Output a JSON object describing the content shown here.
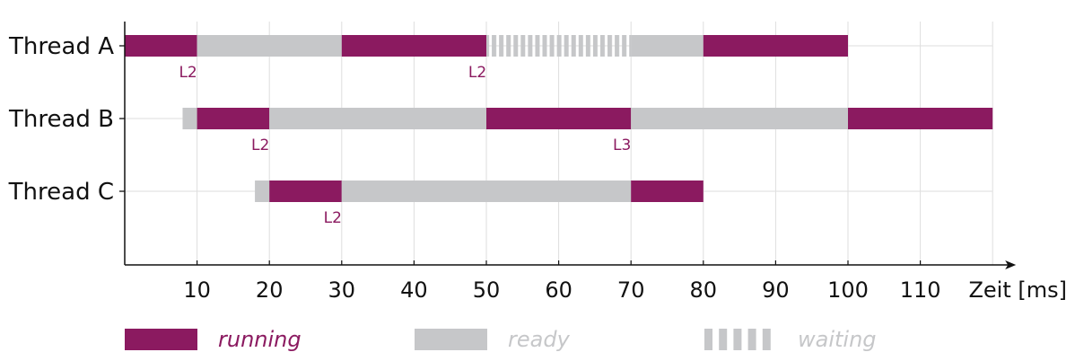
{
  "chart_data": {
    "type": "gantt",
    "xlabel": "Zeit [ms]",
    "xlim": [
      0,
      120
    ],
    "x_ticks": [
      10,
      20,
      30,
      40,
      50,
      60,
      70,
      80,
      90,
      100,
      110
    ],
    "grid": true,
    "colors": {
      "running": "#8b1a60",
      "ready": "#c6c7c9",
      "waiting": "#c6c7c9"
    },
    "legend": [
      {
        "state": "running",
        "label": "running"
      },
      {
        "state": "ready",
        "label": "ready"
      },
      {
        "state": "waiting",
        "label": "waiting"
      }
    ],
    "threads": [
      {
        "name": "Thread A",
        "segments": [
          {
            "start": 0,
            "end": 10,
            "state": "running"
          },
          {
            "start": 10,
            "end": 30,
            "state": "ready"
          },
          {
            "start": 30,
            "end": 50,
            "state": "running"
          },
          {
            "start": 50,
            "end": 70,
            "state": "waiting"
          },
          {
            "start": 70,
            "end": 80,
            "state": "ready"
          },
          {
            "start": 80,
            "end": 100,
            "state": "running"
          }
        ],
        "markers": [
          {
            "x": 10,
            "label": "L2"
          },
          {
            "x": 50,
            "label": "L2"
          }
        ]
      },
      {
        "name": "Thread B",
        "segments": [
          {
            "start": 8,
            "end": 10,
            "state": "ready"
          },
          {
            "start": 10,
            "end": 20,
            "state": "running"
          },
          {
            "start": 20,
            "end": 50,
            "state": "ready"
          },
          {
            "start": 50,
            "end": 70,
            "state": "running"
          },
          {
            "start": 70,
            "end": 100,
            "state": "ready"
          },
          {
            "start": 100,
            "end": 120,
            "state": "running"
          }
        ],
        "markers": [
          {
            "x": 20,
            "label": "L2"
          },
          {
            "x": 70,
            "label": "L3"
          }
        ]
      },
      {
        "name": "Thread C",
        "segments": [
          {
            "start": 18,
            "end": 20,
            "state": "ready"
          },
          {
            "start": 20,
            "end": 30,
            "state": "running"
          },
          {
            "start": 30,
            "end": 70,
            "state": "ready"
          },
          {
            "start": 70,
            "end": 80,
            "state": "running"
          }
        ],
        "markers": [
          {
            "x": 30,
            "label": "L2"
          }
        ]
      }
    ]
  }
}
